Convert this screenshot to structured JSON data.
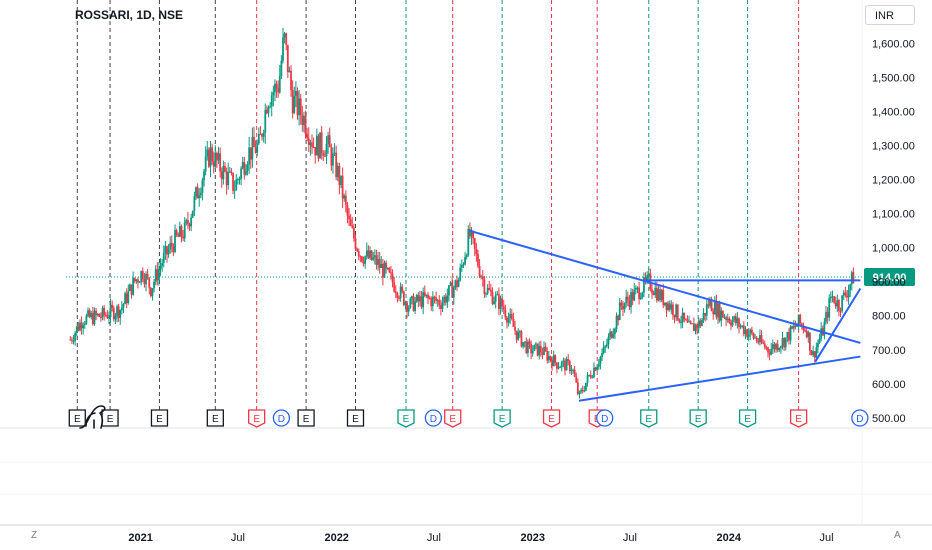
{
  "header": {
    "title": "ROSSARI, 1D, NSE",
    "currency": "INR"
  },
  "controls": {
    "log_toggle": "Z",
    "auto_toggle": "A"
  },
  "colors": {
    "up": "#089981",
    "down": "#f23645",
    "trendline": "#2962ff",
    "price_badge": "#089981",
    "earnings_line": "#444444",
    "dividend_line": "#f23645",
    "split_line": "#089981"
  },
  "chart_data": {
    "type": "candlestick",
    "title": "ROSSARI, 1D, NSE",
    "y_axis": {
      "ticks": [
        "1,600.00",
        "1,500.00",
        "1,400.00",
        "1,300.00",
        "1,200.00",
        "1,100.00",
        "1,000.00",
        "900.00",
        "800.00",
        "700.00",
        "600.00",
        "500.00"
      ],
      "tick_values": [
        1600,
        1500,
        1400,
        1300,
        1200,
        1100,
        1000,
        900,
        800,
        700,
        600,
        500
      ],
      "range": [
        470,
        1640
      ]
    },
    "x_axis": {
      "ticks": [
        "2021",
        "Jul",
        "2022",
        "Jul",
        "2023",
        "Jul",
        "2024",
        "Jul"
      ],
      "tick_dates": [
        "2021-01-01",
        "2021-07-01",
        "2022-01-01",
        "2022-07-01",
        "2023-01-01",
        "2023-07-01",
        "2024-01-01",
        "2024-07-01"
      ],
      "range": [
        "2020-08-15",
        "2024-09-05"
      ]
    },
    "last_price": {
      "label": "914.00",
      "value": 914
    },
    "price_path": [
      [
        "2020-08-23",
        730
      ],
      [
        "2020-09-15",
        790
      ],
      [
        "2020-10-20",
        800
      ],
      [
        "2020-11-25",
        820
      ],
      [
        "2020-12-20",
        900
      ],
      [
        "2021-01-05",
        930
      ],
      [
        "2021-01-20",
        880
      ],
      [
        "2021-02-10",
        960
      ],
      [
        "2021-03-05",
        1020
      ],
      [
        "2021-03-25",
        1050
      ],
      [
        "2021-04-20",
        1180
      ],
      [
        "2021-05-10",
        1280
      ],
      [
        "2021-06-05",
        1220
      ],
      [
        "2021-06-25",
        1180
      ],
      [
        "2021-07-20",
        1280
      ],
      [
        "2021-08-10",
        1300
      ],
      [
        "2021-08-25",
        1440
      ],
      [
        "2021-09-15",
        1480
      ],
      [
        "2021-09-25",
        1620
      ],
      [
        "2021-10-10",
        1440
      ],
      [
        "2021-11-01",
        1380
      ],
      [
        "2021-11-20",
        1300
      ],
      [
        "2021-12-15",
        1300
      ],
      [
        "2022-01-05",
        1210
      ],
      [
        "2022-01-25",
        1060
      ],
      [
        "2022-02-15",
        980
      ],
      [
        "2022-03-15",
        960
      ],
      [
        "2022-04-15",
        900
      ],
      [
        "2022-05-15",
        830
      ],
      [
        "2022-06-15",
        850
      ],
      [
        "2022-07-15",
        840
      ],
      [
        "2022-08-15",
        900
      ],
      [
        "2022-09-05",
        1040
      ],
      [
        "2022-10-05",
        880
      ],
      [
        "2022-11-05",
        830
      ],
      [
        "2022-12-05",
        740
      ],
      [
        "2022-12-25",
        700
      ],
      [
        "2023-01-15",
        700
      ],
      [
        "2023-02-15",
        660
      ],
      [
        "2023-03-15",
        650
      ],
      [
        "2023-03-28",
        560
      ],
      [
        "2023-04-15",
        620
      ],
      [
        "2023-05-15",
        700
      ],
      [
        "2023-06-15",
        830
      ],
      [
        "2023-07-15",
        870
      ],
      [
        "2023-08-05",
        900
      ],
      [
        "2023-08-25",
        860
      ],
      [
        "2023-09-20",
        820
      ],
      [
        "2023-10-20",
        760
      ],
      [
        "2023-11-10",
        780
      ],
      [
        "2023-11-25",
        840
      ],
      [
        "2023-12-15",
        810
      ],
      [
        "2024-01-15",
        780
      ],
      [
        "2024-02-15",
        740
      ],
      [
        "2024-03-15",
        700
      ],
      [
        "2024-04-15",
        730
      ],
      [
        "2024-05-10",
        780
      ],
      [
        "2024-05-25",
        760
      ],
      [
        "2024-06-05",
        680
      ],
      [
        "2024-06-25",
        760
      ],
      [
        "2024-07-10",
        860
      ],
      [
        "2024-07-25",
        830
      ],
      [
        "2024-08-10",
        880
      ],
      [
        "2024-08-20",
        914
      ]
    ],
    "trendlines": [
      {
        "from": [
          "2022-09-05",
          1050
        ],
        "to": [
          "2024-09-02",
          720
        ]
      },
      {
        "from": [
          "2023-03-28",
          550
        ],
        "to": [
          "2024-09-02",
          680
        ]
      },
      {
        "from": [
          "2023-07-28",
          904
        ],
        "to": [
          "2024-09-02",
          904
        ]
      },
      {
        "from": [
          "2024-06-10",
          665
        ],
        "to": [
          "2024-09-02",
          880
        ]
      }
    ],
    "events": [
      {
        "date": "2020-09-05",
        "kind": "E",
        "line": "earnings"
      },
      {
        "date": "2020-11-05",
        "kind": "E",
        "line": "earnings"
      },
      {
        "date": "2021-02-05",
        "kind": "E",
        "line": "earnings"
      },
      {
        "date": "2021-05-20",
        "kind": "E",
        "line": "earnings"
      },
      {
        "date": "2021-08-05",
        "kind": "E",
        "line": "dividend"
      },
      {
        "date": "2021-09-20",
        "kind": "D",
        "line": "none"
      },
      {
        "date": "2021-11-05",
        "kind": "E",
        "line": "earnings"
      },
      {
        "date": "2022-02-05",
        "kind": "E",
        "line": "earnings"
      },
      {
        "date": "2022-05-10",
        "kind": "E",
        "line": "split"
      },
      {
        "date": "2022-06-30",
        "kind": "D",
        "line": "none"
      },
      {
        "date": "2022-08-05",
        "kind": "E",
        "line": "dividend"
      },
      {
        "date": "2022-11-05",
        "kind": "E",
        "line": "split"
      },
      {
        "date": "2023-02-05",
        "kind": "E",
        "line": "dividend"
      },
      {
        "date": "2023-05-01",
        "kind": "E",
        "line": "dividend"
      },
      {
        "date": "2023-05-15",
        "kind": "D",
        "line": "none"
      },
      {
        "date": "2023-08-05",
        "kind": "E",
        "line": "split"
      },
      {
        "date": "2023-11-05",
        "kind": "E",
        "line": "split"
      },
      {
        "date": "2024-02-05",
        "kind": "E",
        "line": "split"
      },
      {
        "date": "2024-05-10",
        "kind": "E",
        "line": "dividend"
      },
      {
        "date": "2024-09-01",
        "kind": "D",
        "line": "none"
      }
    ]
  }
}
